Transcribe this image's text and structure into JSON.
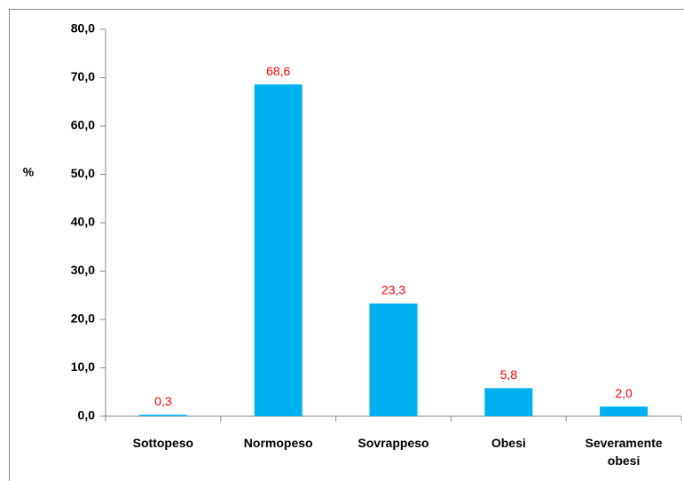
{
  "chart_data": {
    "type": "bar",
    "y_label": "%",
    "categories": [
      "Sottopeso",
      "Normopeso",
      "Sovrappeso",
      "Obesi",
      "Severamente obesi"
    ],
    "values": [
      0.3,
      68.6,
      23.3,
      5.8,
      2.0
    ],
    "value_labels": [
      "0,3",
      "68,6",
      "23,3",
      "5,8",
      "2,0"
    ],
    "color": "#00b0f0",
    "value_label_color": "#ff0000",
    "ylim": [
      0,
      80
    ],
    "yticks": [
      {
        "value": 0,
        "label": "0,0"
      },
      {
        "value": 10,
        "label": "10,0"
      },
      {
        "value": 20,
        "label": "20,0"
      },
      {
        "value": 30,
        "label": "30,0"
      },
      {
        "value": 40,
        "label": "40,0"
      },
      {
        "value": 50,
        "label": "50,0"
      },
      {
        "value": 60,
        "label": "60,0"
      },
      {
        "value": 70,
        "label": "70,0"
      },
      {
        "value": 80,
        "label": "80,0"
      }
    ],
    "grid": false
  }
}
